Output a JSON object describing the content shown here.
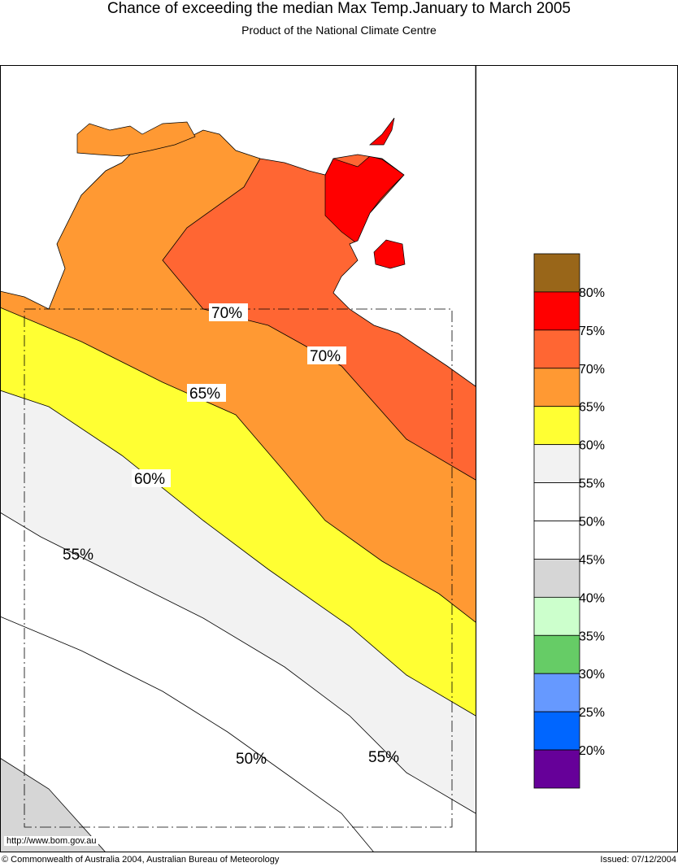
{
  "header": {
    "title": "Chance of exceeding the median Max Temp.January to March 2005",
    "subtitle": "Product of the National Climate Centre"
  },
  "footer": {
    "url": "http://www.bom.gov.au",
    "copyright": "© Commonwealth of Australia 2004, Australian Bureau of Meteorology",
    "issued": "Issued: 07/12/2004"
  },
  "chart_data": {
    "type": "heatmap",
    "title": "Chance of exceeding the median Max Temp.January to March 2005",
    "region": "Northern Territory, Australia",
    "contour_labels": [
      "70%",
      "70%",
      "65%",
      "60%",
      "55%",
      "50%",
      "55%"
    ],
    "legend": {
      "placement": "right",
      "colors": [
        "#996619",
        "#FF0000",
        "#FF6633",
        "#FF9933",
        "#FFFF33",
        "#F2F2F2",
        "#FFFFFF",
        "#FFFFFF",
        "#D6D6D6",
        "#CCFFCC",
        "#66CC66",
        "#6699FF",
        "#0066FF",
        "#660099"
      ],
      "labels": [
        "80%",
        "75%",
        "70%",
        "65%",
        "60%",
        "55%",
        "50%",
        "45%",
        "40%",
        "35%",
        "30%",
        "25%",
        "20%"
      ]
    }
  }
}
